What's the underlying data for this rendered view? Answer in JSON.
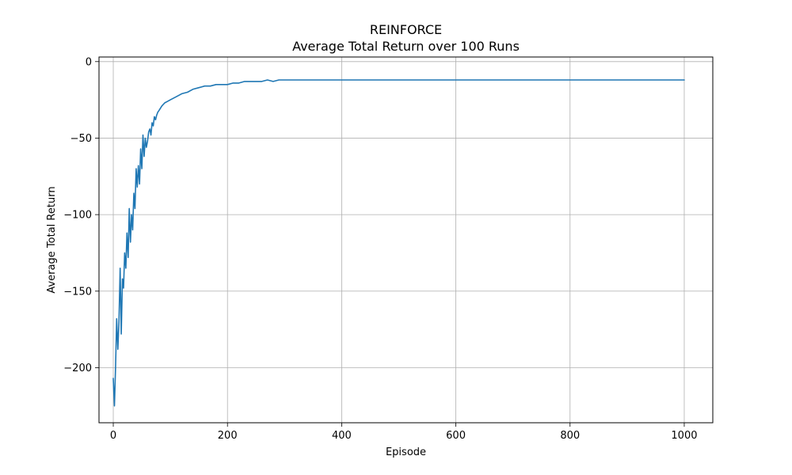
{
  "chart_data": {
    "type": "line",
    "title": "REINFORCE",
    "subtitle": "Average Total Return over 100 Runs",
    "xlabel": "Episode",
    "ylabel": "Average Total Return",
    "xlim": [
      -25,
      1050
    ],
    "ylim": [
      -236,
      3
    ],
    "xticks": [
      0,
      200,
      400,
      600,
      800,
      1000
    ],
    "xtick_labels": [
      "0",
      "200",
      "400",
      "600",
      "800",
      "1000"
    ],
    "yticks": [
      0,
      -50,
      -100,
      -150,
      -200
    ],
    "ytick_labels": [
      "0",
      "−50",
      "−100",
      "−150",
      "−200"
    ],
    "grid": true,
    "series": [
      {
        "color": "#1f77b4",
        "x": [
          0,
          2,
          4,
          6,
          8,
          10,
          12,
          14,
          16,
          18,
          20,
          22,
          24,
          26,
          28,
          30,
          32,
          34,
          36,
          38,
          40,
          42,
          44,
          46,
          48,
          50,
          52,
          54,
          56,
          58,
          60,
          62,
          64,
          66,
          68,
          70,
          72,
          74,
          76,
          78,
          80,
          85,
          90,
          95,
          100,
          110,
          120,
          130,
          140,
          150,
          160,
          170,
          180,
          190,
          200,
          210,
          220,
          230,
          240,
          250,
          260,
          270,
          280,
          290,
          300,
          320,
          340,
          360,
          380,
          400,
          420,
          440,
          460,
          480,
          500,
          520,
          540,
          560,
          580,
          600,
          620,
          640,
          660,
          680,
          700,
          720,
          740,
          760,
          780,
          800,
          820,
          840,
          860,
          880,
          900,
          920,
          940,
          960,
          980,
          1000
        ],
        "y": [
          -207,
          -225,
          -200,
          -168,
          -188,
          -170,
          -135,
          -178,
          -142,
          -148,
          -125,
          -135,
          -112,
          -128,
          -96,
          -118,
          -100,
          -110,
          -86,
          -96,
          -70,
          -82,
          -68,
          -80,
          -57,
          -70,
          -48,
          -62,
          -50,
          -56,
          -52,
          -46,
          -44,
          -48,
          -40,
          -42,
          -36,
          -38,
          -35,
          -33,
          -32,
          -29,
          -27,
          -26,
          -25,
          -23,
          -21,
          -20,
          -18,
          -17,
          -16,
          -16,
          -15,
          -15,
          -15,
          -14,
          -14,
          -13,
          -13,
          -13,
          -13,
          -12,
          -13,
          -12,
          -12,
          -12,
          -12,
          -12,
          -12,
          -12,
          -12,
          -12,
          -12,
          -12,
          -12,
          -12,
          -12,
          -12,
          -12,
          -12,
          -12,
          -12,
          -12,
          -12,
          -12,
          -12,
          -12,
          -12,
          -12,
          -12,
          -12,
          -12,
          -12,
          -12,
          -12,
          -12,
          -12,
          -12,
          -12,
          -12
        ]
      }
    ]
  }
}
